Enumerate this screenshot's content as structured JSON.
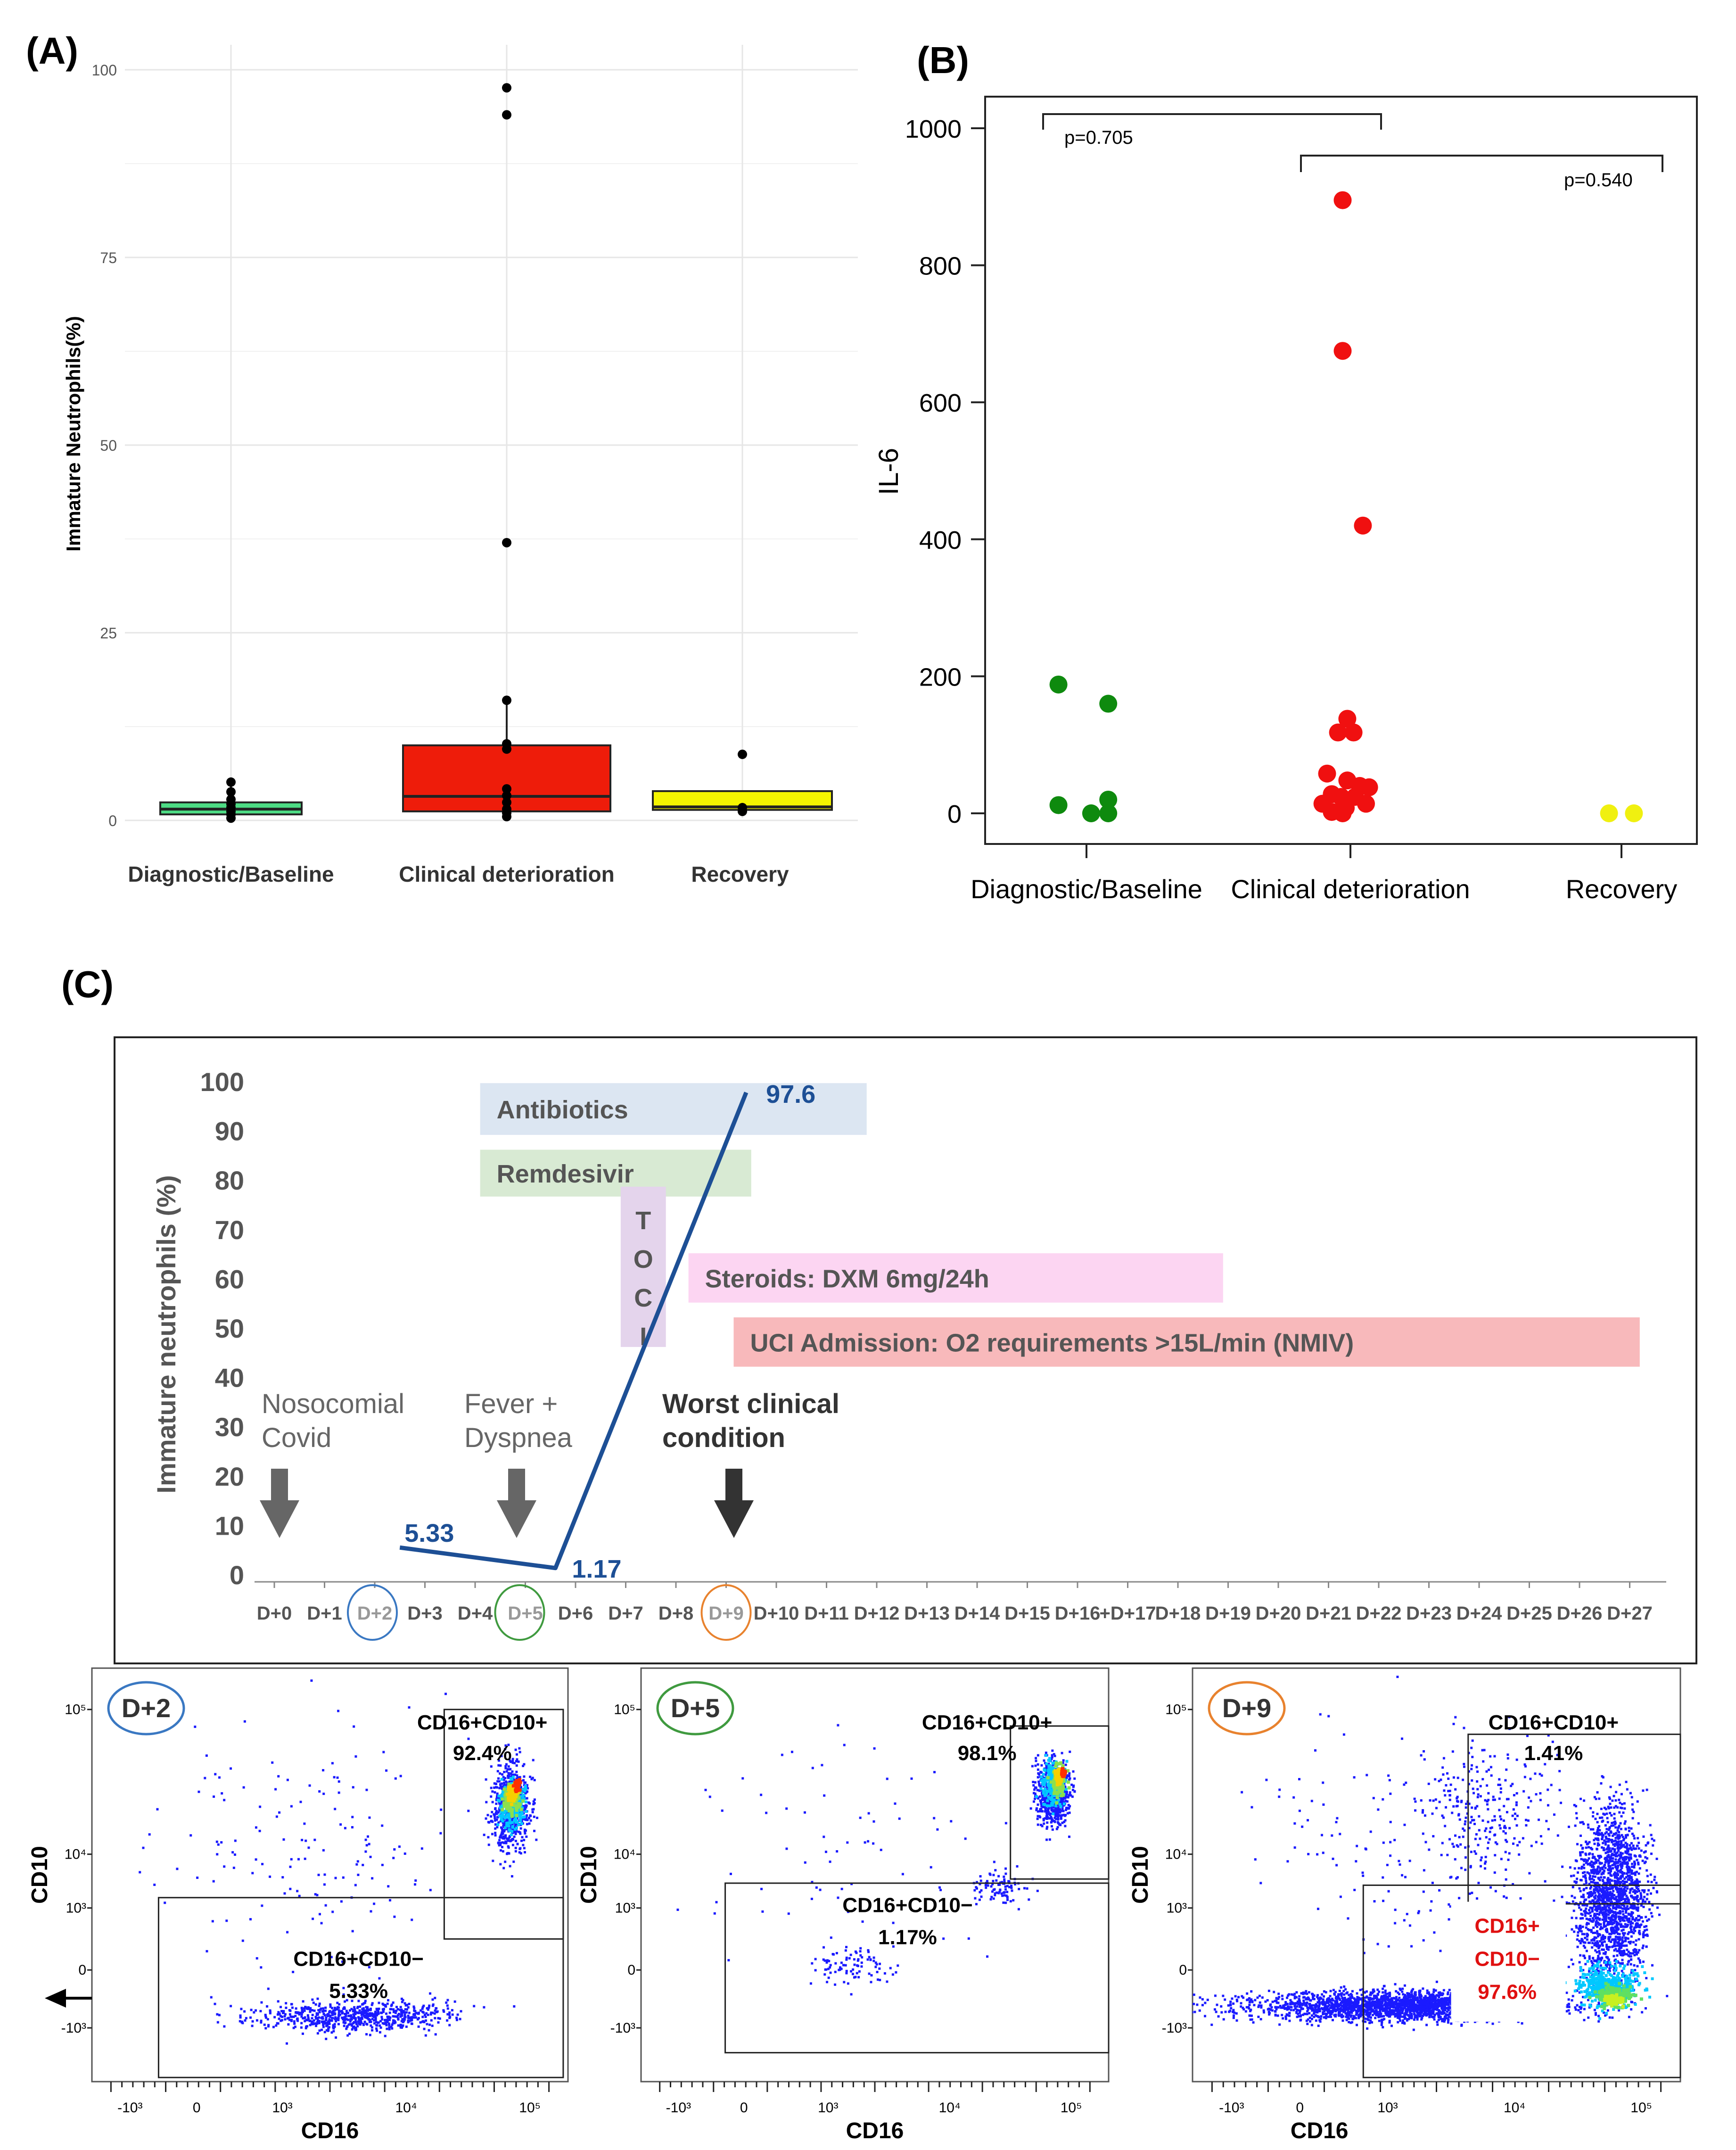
{
  "panels": {
    "a": "(A)",
    "b": "(B)",
    "c": "(C)"
  },
  "chart_data": [
    {
      "id": "A",
      "type": "box",
      "ylabel": "Immature Neutrophils(%)",
      "ylim": [
        0,
        100
      ],
      "yticks": [
        "0",
        "25",
        "50",
        "75",
        "100"
      ],
      "categories": [
        "Diagnostic/Baseline",
        "Clinical deterioration",
        "Recovery"
      ],
      "colors": [
        "#4ddc84",
        "#ee1c0a",
        "#f5f500"
      ],
      "boxes": [
        {
          "q1": 0.8,
          "median": 1.5,
          "q3": 2.4,
          "whisker_low": 0.3,
          "whisker_high": 5.0
        },
        {
          "q1": 1.2,
          "median": 3.2,
          "q3": 10.0,
          "whisker_low": 0.5,
          "whisker_high": 16.0
        },
        {
          "q1": 1.4,
          "median": 1.8,
          "q3": 3.9,
          "whisker_low": 1.2,
          "whisker_high": 3.9
        }
      ],
      "points": [
        [
          0.3,
          0.8,
          1.2,
          1.7,
          2.2,
          2.8,
          3.8,
          5.1
        ],
        [
          0.5,
          1.0,
          1.5,
          2.4,
          3.3,
          4.2,
          9.5,
          10.2,
          16.0,
          37.0,
          94.0,
          97.6
        ],
        [
          1.2,
          1.7,
          8.8
        ]
      ]
    },
    {
      "id": "B",
      "type": "scatter",
      "ylabel": "IL-6",
      "ylim": [
        0,
        1000
      ],
      "yticks": [
        "0",
        "200",
        "400",
        "600",
        "800",
        "1000"
      ],
      "categories": [
        "Diagnostic/Baseline",
        "Clinical deterioration",
        "Recovery"
      ],
      "colors": [
        "#0e8a0e",
        "#f01010",
        "#f0f010"
      ],
      "points": [
        [
          [
            -0.18,
            188
          ],
          [
            0.14,
            160
          ],
          [
            -0.18,
            12
          ],
          [
            0.14,
            20
          ],
          [
            0.03,
            0
          ],
          [
            0.14,
            0
          ]
        ],
        [
          [
            -0.05,
            895
          ],
          [
            -0.05,
            675
          ],
          [
            0.08,
            420
          ],
          [
            -0.02,
            138
          ],
          [
            -0.08,
            118
          ],
          [
            0.02,
            118
          ],
          [
            -0.15,
            58
          ],
          [
            -0.02,
            48
          ],
          [
            0.06,
            40
          ],
          [
            0.12,
            38
          ],
          [
            -0.12,
            28
          ],
          [
            -0.06,
            24
          ],
          [
            0.03,
            24
          ],
          [
            0.1,
            14
          ],
          [
            -0.18,
            14
          ],
          [
            -0.03,
            8
          ],
          [
            -0.12,
            2
          ],
          [
            -0.05,
            0
          ]
        ],
        [
          [
            -0.08,
            0
          ],
          [
            0.08,
            0
          ]
        ]
      ],
      "brackets": [
        {
          "label": "p=0.705"
        },
        {
          "label": "p=0.540"
        }
      ]
    },
    {
      "id": "C",
      "type": "line",
      "ylabel": "Immature neutrophils (%)",
      "ylim": [
        0,
        100
      ],
      "yticks": [
        "0",
        "10",
        "20",
        "30",
        "40",
        "50",
        "60",
        "70",
        "80",
        "90",
        "100"
      ],
      "xticks": [
        "D+0",
        "D+1",
        "D+2",
        "D+3",
        "D+4",
        "D+5",
        "D+6",
        "D+7",
        "D+8",
        "D+9",
        "D+10",
        "D+11",
        "D+12",
        "D+13",
        "D+14",
        "D+15",
        "D+16",
        "+D+17",
        "D+18",
        "D+19",
        "D+20",
        "D+21",
        "D+22",
        "D+23",
        "D+24",
        "D+25",
        "D+26",
        "D+27"
      ],
      "circled_ticks": [
        {
          "index": 2,
          "color": "#3a78c2"
        },
        {
          "index": 5,
          "color": "#3f9a3f"
        },
        {
          "index": 9,
          "color": "#e8822e"
        }
      ],
      "series": [
        {
          "name": "Immature neutrophils",
          "x": [
            2.5,
            5.6,
            9.4
          ],
          "y": [
            5.33,
            1.17,
            97.6
          ],
          "color": "#1d4f95"
        }
      ],
      "value_labels": [
        "5.33",
        "1.17",
        "97.6"
      ],
      "treatments": [
        {
          "label": "Antibiotics",
          "start": 4.1,
          "end": 11.8,
          "ytop": 99.5,
          "ybot": 89.0,
          "fill": "#dce6f2",
          "text": "#555555"
        },
        {
          "label": "Remdesivir",
          "start": 4.1,
          "end": 9.5,
          "ytop": 86.0,
          "ybot": 76.5,
          "fill": "#d8ead3",
          "text": "#555555"
        },
        {
          "label": "Steroids: DXM 6mg/24h",
          "start": 8.25,
          "end": 18.9,
          "ytop": 65.0,
          "ybot": 55.0,
          "fill": "#fcd5f2",
          "text": "#555555"
        },
        {
          "label": "UCI Admission: O2 requirements >15L/min (NMIV)",
          "start": 9.15,
          "end": 27.2,
          "ytop": 52.0,
          "ybot": 42.0,
          "fill": "#f8b9bb",
          "text": "#555555"
        }
      ],
      "toci": {
        "letters": [
          "T",
          "O",
          "C",
          "I"
        ],
        "start": 6.9,
        "end": 7.8,
        "ytop": 78.5,
        "ybot": 46.0,
        "fill": "#e4d4ec"
      },
      "events": [
        {
          "lines": [
            "Nosocomial",
            "Covid"
          ],
          "x": 0.2,
          "bold": false
        },
        {
          "lines": [
            "Fever +",
            "Dyspnea"
          ],
          "x": 5.05,
          "bold": false
        },
        {
          "lines": [
            "Worst clinical",
            "condition"
          ],
          "x": 9.95,
          "bold": true
        }
      ]
    },
    {
      "id": "flow",
      "type": "scatter",
      "xlabel": "CD16",
      "ylabel": "CD10",
      "xtick_labels": [
        "-10³",
        "0",
        "10³",
        "10⁴",
        "10⁵"
      ],
      "ytick_labels": [
        "10⁵",
        "10⁴",
        "10³",
        "0",
        "-10³"
      ],
      "plots": [
        {
          "day": "D+2",
          "ring": "#3a78c2",
          "pos_gate": "CD16+CD10+",
          "pos_value": "92.4%",
          "neg_gate": "CD16+CD10−",
          "neg_value": "5.33%"
        },
        {
          "day": "D+5",
          "ring": "#3f9a3f",
          "pos_gate": "CD16+CD10+",
          "pos_value": "98.1%",
          "neg_gate": "CD16+CD10−",
          "neg_value": "1.17%"
        },
        {
          "day": "D+9",
          "ring": "#e8822e",
          "pos_gate": "CD16+CD10+",
          "pos_value": "1.41%",
          "neg_gate_l1": "CD16+",
          "neg_gate_l2": "CD10−",
          "neg_value": "97.6%"
        }
      ]
    }
  ]
}
